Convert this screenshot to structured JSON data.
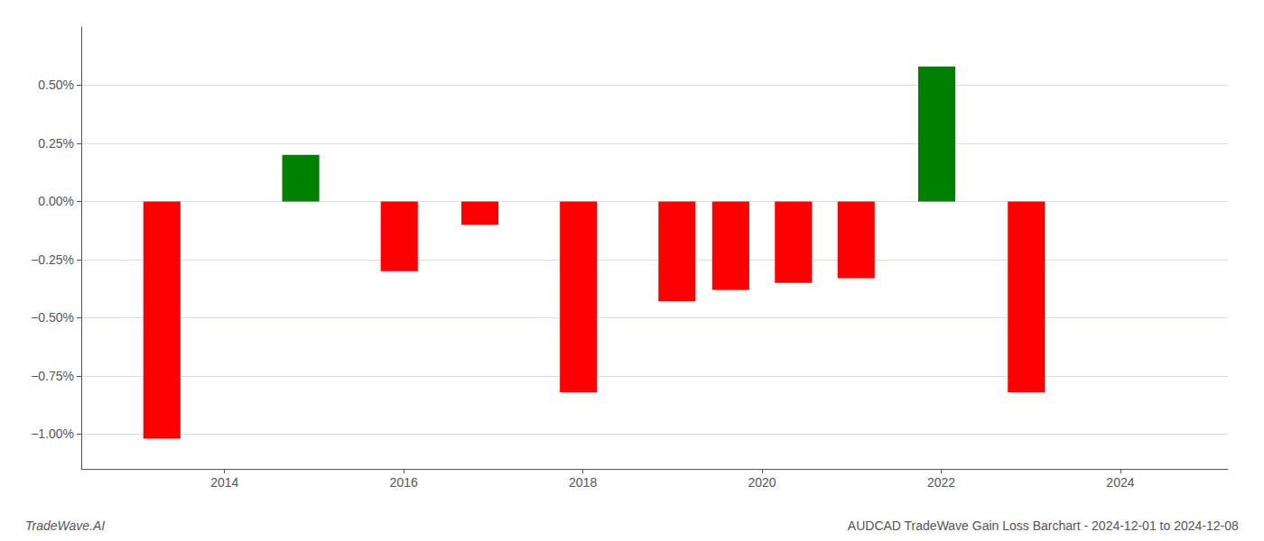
{
  "chart_data": {
    "type": "bar",
    "x": [
      2013.3,
      2014.85,
      2015.95,
      2016.85,
      2017.95,
      2019.05,
      2019.65,
      2020.35,
      2021.05,
      2021.95,
      2022.95
    ],
    "values": [
      -1.02,
      0.2,
      -0.3,
      -0.1,
      -0.82,
      -0.43,
      -0.38,
      -0.35,
      -0.33,
      0.58,
      -0.82
    ],
    "colors": [
      "#ff0000",
      "#008000",
      "#ff0000",
      "#ff0000",
      "#ff0000",
      "#ff0000",
      "#ff0000",
      "#ff0000",
      "#ff0000",
      "#008000",
      "#ff0000"
    ],
    "xlim": [
      2012.4,
      2025.2
    ],
    "xticks": [
      2014,
      2016,
      2018,
      2020,
      2022,
      2024
    ],
    "ylim": [
      -1.15,
      0.75
    ],
    "yticks": [
      {
        "value": -1.0,
        "label": "−1.00%"
      },
      {
        "value": -0.75,
        "label": "−0.75%"
      },
      {
        "value": -0.5,
        "label": "−0.50%"
      },
      {
        "value": -0.25,
        "label": "−0.25%"
      },
      {
        "value": 0.0,
        "label": "0.00%"
      },
      {
        "value": 0.25,
        "label": "0.25%"
      },
      {
        "value": 0.5,
        "label": "0.50%"
      }
    ],
    "grid": true,
    "annotations": [
      "TradeWave.AI",
      "AUDCAD TradeWave Gain Loss Barchart - 2024-12-01 to 2024-12-08"
    ]
  }
}
